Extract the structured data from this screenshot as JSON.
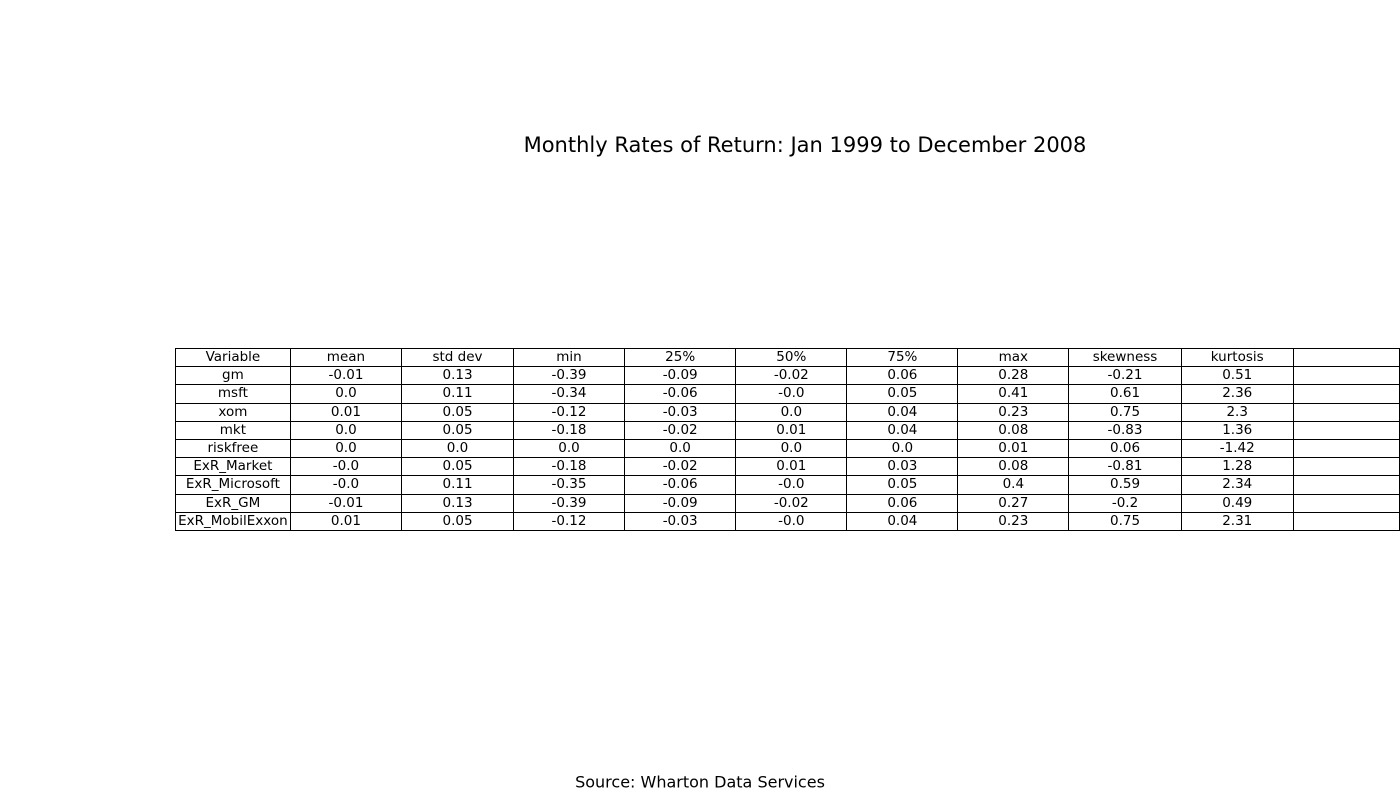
{
  "chart_data": {
    "type": "table",
    "title": "Monthly Rates of Return: Jan 1999 to December 2008",
    "columns": [
      "Variable",
      "mean",
      "std dev",
      "min",
      "25%",
      "50%",
      "75%",
      "max",
      "skewness",
      "kurtosis",
      ""
    ],
    "rows": [
      [
        "gm",
        "-0.01",
        "0.13",
        "-0.39",
        "-0.09",
        "-0.02",
        "0.06",
        "0.28",
        "-0.21",
        "0.51",
        ""
      ],
      [
        "msft",
        "0.0",
        "0.11",
        "-0.34",
        "-0.06",
        "-0.0",
        "0.05",
        "0.41",
        "0.61",
        "2.36",
        ""
      ],
      [
        "xom",
        "0.01",
        "0.05",
        "-0.12",
        "-0.03",
        "0.0",
        "0.04",
        "0.23",
        "0.75",
        "2.3",
        ""
      ],
      [
        "mkt",
        "0.0",
        "0.05",
        "-0.18",
        "-0.02",
        "0.01",
        "0.04",
        "0.08",
        "-0.83",
        "1.36",
        ""
      ],
      [
        "riskfree",
        "0.0",
        "0.0",
        "0.0",
        "0.0",
        "0.0",
        "0.0",
        "0.01",
        "0.06",
        "-1.42",
        ""
      ],
      [
        "ExR_Market",
        "-0.0",
        "0.05",
        "-0.18",
        "-0.02",
        "0.01",
        "0.03",
        "0.08",
        "-0.81",
        "1.28",
        ""
      ],
      [
        "ExR_Microsoft",
        "-0.0",
        "0.11",
        "-0.35",
        "-0.06",
        "-0.0",
        "0.05",
        "0.4",
        "0.59",
        "2.34",
        ""
      ],
      [
        "ExR_GM",
        "-0.01",
        "0.13",
        "-0.39",
        "-0.09",
        "-0.02",
        "0.06",
        "0.27",
        "-0.2",
        "0.49",
        ""
      ],
      [
        "ExR_MobilExxon",
        "0.01",
        "0.05",
        "-0.12",
        "-0.03",
        "-0.0",
        "0.04",
        "0.23",
        "0.75",
        "2.31",
        ""
      ]
    ]
  },
  "footer": {
    "source": "Source: Wharton Data Services"
  }
}
